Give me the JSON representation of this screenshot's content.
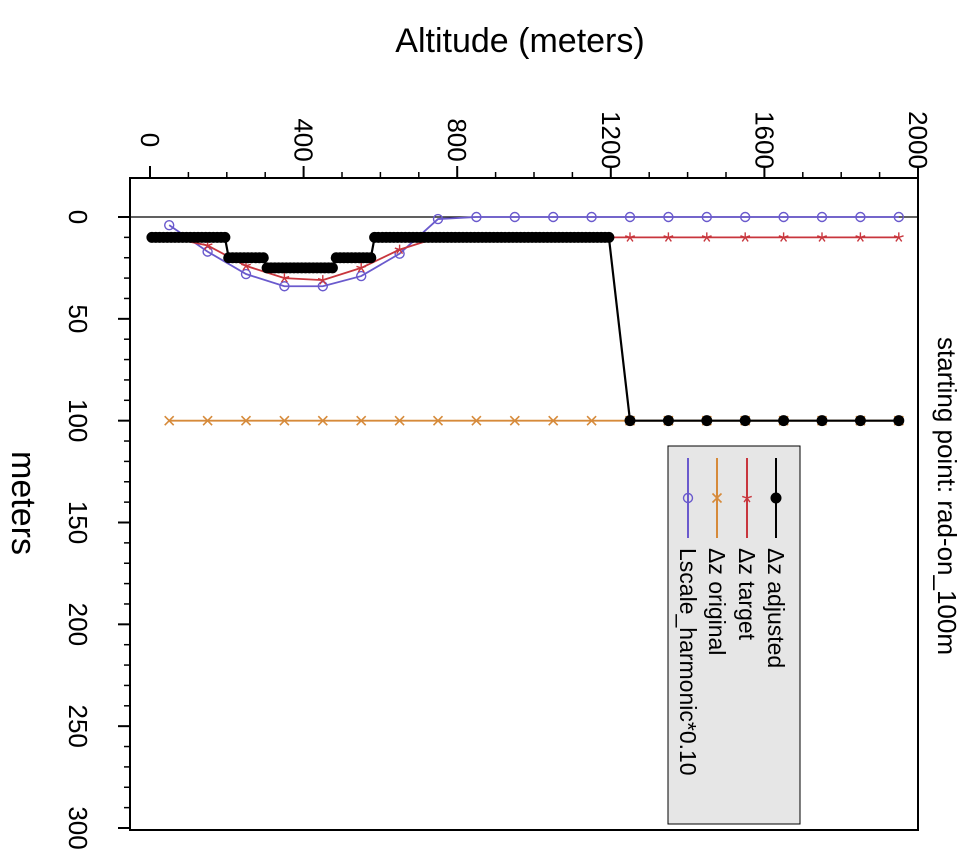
{
  "chart_data": {
    "type": "line",
    "title": "",
    "subtitle": "starting point: rad-on_100m",
    "xlabel": "Altitude (meters)",
    "ylabel": "meters",
    "xlim": [
      0,
      2000
    ],
    "ylim": [
      300,
      0
    ],
    "x_ticks": [
      "0",
      "400",
      "800",
      "1200",
      "1600",
      "2000"
    ],
    "x_tick_values": [
      0,
      400,
      800,
      1200,
      1600,
      2000
    ],
    "y_ticks": [
      "0",
      "50",
      "100",
      "150",
      "200",
      "250",
      "300"
    ],
    "y_tick_values": [
      0,
      50,
      100,
      150,
      200,
      250,
      300
    ],
    "reference_line_y": 0,
    "legend_position": "bottom-right (rotated)",
    "grid": false,
    "series": [
      {
        "name": "Δz adjusted",
        "color": "#000000",
        "marker": "filled-circle",
        "x": [
          5,
          15,
          25,
          35,
          45,
          55,
          65,
          75,
          85,
          95,
          105,
          115,
          125,
          135,
          145,
          155,
          165,
          175,
          185,
          195,
          205,
          215,
          225,
          235,
          245,
          255,
          265,
          275,
          285,
          295,
          305,
          315,
          325,
          335,
          345,
          355,
          365,
          375,
          385,
          395,
          405,
          415,
          425,
          435,
          445,
          455,
          465,
          475,
          485,
          495,
          505,
          515,
          525,
          535,
          545,
          555,
          565,
          575,
          585,
          595,
          605,
          615,
          625,
          635,
          645,
          655,
          665,
          675,
          685,
          695,
          705,
          715,
          725,
          735,
          745,
          755,
          765,
          775,
          785,
          795,
          805,
          815,
          825,
          835,
          845,
          855,
          865,
          875,
          885,
          895,
          905,
          915,
          925,
          935,
          945,
          955,
          965,
          975,
          985,
          995,
          1005,
          1015,
          1025,
          1035,
          1045,
          1055,
          1065,
          1075,
          1085,
          1095,
          1105,
          1115,
          1125,
          1135,
          1145,
          1155,
          1165,
          1175,
          1185,
          1195,
          1250,
          1350,
          1450,
          1550,
          1650,
          1750,
          1850,
          1950
        ],
        "y": [
          10,
          10,
          10,
          10,
          10,
          10,
          10,
          10,
          10,
          10,
          10,
          10,
          10,
          10,
          10,
          10,
          10,
          10,
          10,
          10,
          20,
          20,
          20,
          20,
          20,
          20,
          20,
          20,
          20,
          20,
          25,
          25,
          25,
          25,
          25,
          25,
          25,
          25,
          25,
          25,
          25,
          25,
          25,
          25,
          25,
          25,
          25,
          25,
          20,
          20,
          20,
          20,
          20,
          20,
          20,
          20,
          20,
          20,
          10,
          10,
          10,
          10,
          10,
          10,
          10,
          10,
          10,
          10,
          10,
          10,
          10,
          10,
          10,
          10,
          10,
          10,
          10,
          10,
          10,
          10,
          10,
          10,
          10,
          10,
          10,
          10,
          10,
          10,
          10,
          10,
          10,
          10,
          10,
          10,
          10,
          10,
          10,
          10,
          10,
          10,
          10,
          10,
          10,
          10,
          10,
          10,
          10,
          10,
          10,
          10,
          10,
          10,
          10,
          10,
          10,
          10,
          10,
          10,
          10,
          10,
          100,
          100,
          100,
          100,
          100,
          100,
          100,
          100
        ]
      },
      {
        "name": "Δz target",
        "color": "#c8363d",
        "marker": "star",
        "x": [
          50,
          150,
          250,
          350,
          450,
          550,
          650,
          750,
          850,
          950,
          1050,
          1150,
          1250,
          1350,
          1450,
          1550,
          1650,
          1750,
          1850,
          1950
        ],
        "y": [
          10,
          14,
          24,
          30,
          31,
          25,
          16,
          10,
          10,
          10,
          10,
          10,
          10,
          10,
          10,
          10,
          10,
          10,
          10,
          10
        ]
      },
      {
        "name": "Δz original",
        "color": "#d68a3a",
        "marker": "x",
        "x": [
          50,
          150,
          250,
          350,
          450,
          550,
          650,
          750,
          850,
          950,
          1050,
          1150,
          1250,
          1350,
          1450,
          1550,
          1650,
          1750,
          1850,
          1950
        ],
        "y": [
          100,
          100,
          100,
          100,
          100,
          100,
          100,
          100,
          100,
          100,
          100,
          100,
          100,
          100,
          100,
          100,
          100,
          100,
          100,
          100
        ]
      },
      {
        "name": "Lscale_harmonic*0.10",
        "color": "#6a5acd",
        "marker": "open-circle",
        "x": [
          50,
          150,
          250,
          350,
          450,
          550,
          650,
          750,
          850,
          950,
          1050,
          1150,
          1250,
          1350,
          1450,
          1550,
          1650,
          1750,
          1850,
          1950
        ],
        "y": [
          4,
          17,
          28,
          34,
          34,
          29,
          18,
          1,
          0,
          0,
          0,
          0,
          0,
          0,
          0,
          0,
          0,
          0,
          0,
          0
        ]
      }
    ]
  }
}
